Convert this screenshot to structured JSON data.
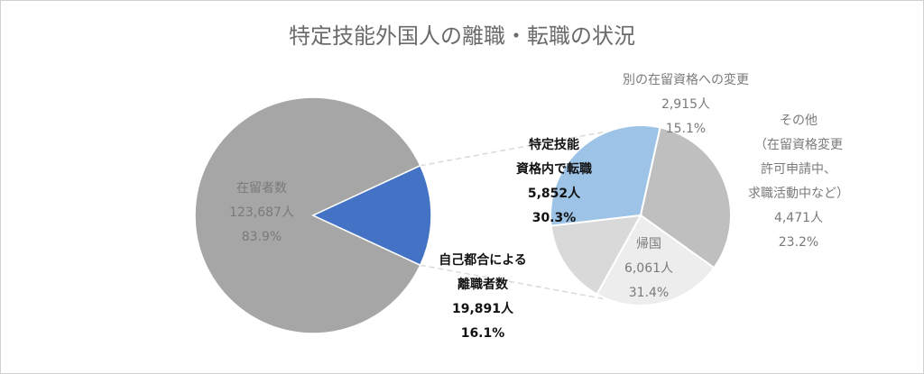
{
  "chart_data": [
    {
      "type": "pie",
      "title": "特定技能外国人の離職・転職の状況",
      "slices": [
        {
          "label": "在留者数",
          "value": 123687,
          "value_label": "123,687人",
          "percent": 83.9,
          "percent_label": "83.9%",
          "color": "#a6a6a6"
        },
        {
          "label": "自己都合による離職者数",
          "label_lines": [
            "自己都合による",
            "離職者数"
          ],
          "value": 19891,
          "value_label": "19,891人",
          "percent": 16.1,
          "percent_label": "16.1%",
          "color": "#4472c4"
        }
      ]
    },
    {
      "type": "pie",
      "slices": [
        {
          "label": "特定技能資格内で転職",
          "label_lines": [
            "特定技能",
            "資格内で転職"
          ],
          "value": 5852,
          "value_label": "5,852人",
          "percent": 30.3,
          "percent_label": "30.3%",
          "color": "#9dc3e6"
        },
        {
          "label": "帰国",
          "value": 6061,
          "value_label": "6,061人",
          "percent": 31.4,
          "percent_label": "31.4%",
          "color": "#bfbfbf"
        },
        {
          "label": "その他（在留資格変更許可申請中、求職活動中など）",
          "label_lines": [
            "その他",
            "（在留資格変更",
            "許可申請中、",
            "求職活動中など）"
          ],
          "value": 4471,
          "value_label": "4,471人",
          "percent": 23.2,
          "percent_label": "23.2%",
          "color": "#ededed"
        },
        {
          "label": "別の在留資格への変更",
          "value": 2915,
          "value_label": "2,915人",
          "percent": 15.1,
          "percent_label": "15.1%",
          "color": "#d9d9d9"
        }
      ]
    }
  ]
}
